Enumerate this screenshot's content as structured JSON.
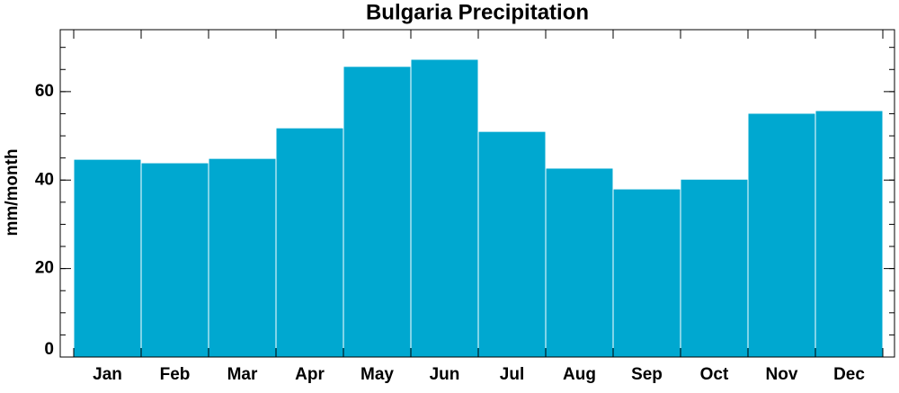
{
  "chart_data": {
    "type": "bar",
    "title": "Bulgaria Precipitation",
    "y_label": "mm/month",
    "categories": [
      "Jan",
      "Feb",
      "Mar",
      "Apr",
      "May",
      "Jun",
      "Jul",
      "Aug",
      "Sep",
      "Oct",
      "Nov",
      "Dec"
    ],
    "values": [
      44.7,
      43.9,
      44.9,
      51.8,
      65.7,
      67.3,
      51.0,
      42.7,
      38.0,
      40.2,
      55.1,
      55.7
    ],
    "color": "#00a8d0",
    "ylim": [
      0,
      74
    ],
    "yticks": [
      0,
      20,
      40,
      60
    ],
    "grid": false
  }
}
